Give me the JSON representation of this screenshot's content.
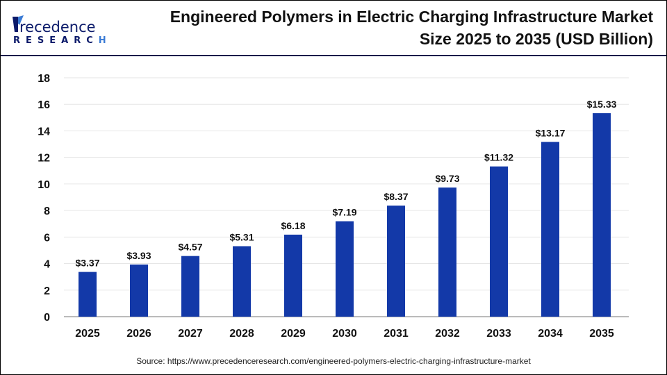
{
  "brand": {
    "name_line1": "Precedence",
    "name_line2": "RESEARCH"
  },
  "title_line1": "Engineered Polymers in Electric Charging Infrastructure Market",
  "title_line2": "Size 2025 to 2035 (USD Billion)",
  "source": "Source: https://www.precedenceresearch.com/engineered-polymers-electric-charging-infrastructure-market",
  "colors": {
    "bar": "#1339a8",
    "header_line": "#0b1a4a",
    "grid": "#e6e6e6"
  },
  "chart_data": {
    "type": "bar",
    "title": "Engineered Polymers in Electric Charging Infrastructure Market Size 2025 to 2035 (USD Billion)",
    "xlabel": "",
    "ylabel": "",
    "categories": [
      "2025",
      "2026",
      "2027",
      "2028",
      "2029",
      "2030",
      "2031",
      "2032",
      "2033",
      "2034",
      "2035"
    ],
    "values": [
      3.37,
      3.93,
      4.57,
      5.31,
      6.18,
      7.19,
      8.37,
      9.73,
      11.32,
      13.17,
      15.33
    ],
    "data_labels": [
      "$3.37",
      "$3.93",
      "$4.57",
      "$5.31",
      "$6.18",
      "$7.19",
      "$8.37",
      "$9.73",
      "$11.32",
      "$13.17",
      "$15.33"
    ],
    "ylim": [
      0,
      18
    ],
    "yticks": [
      "0",
      "2",
      "4",
      "6",
      "8",
      "10",
      "12",
      "14",
      "16",
      "18"
    ],
    "grid": true,
    "legend": "none"
  }
}
